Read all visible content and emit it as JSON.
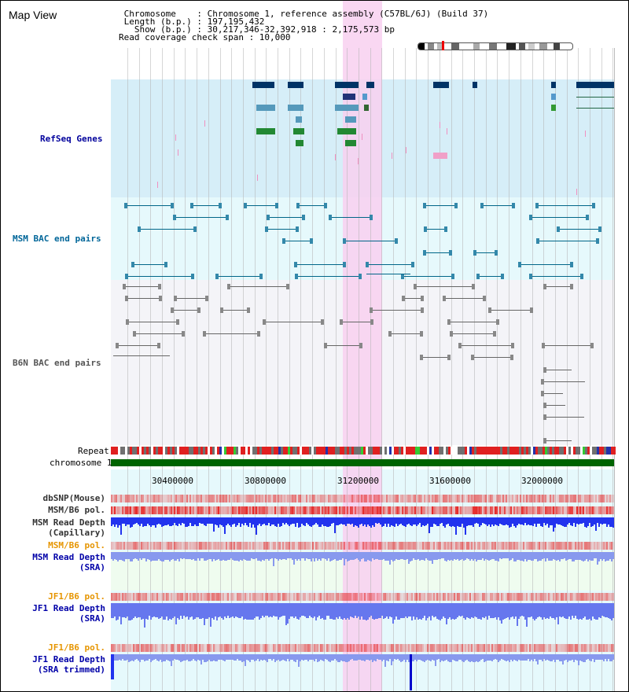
{
  "header": {
    "title": "Map View",
    "chromosome_line": " Chromosome    : Chromosome 1, reference assembly (C57BL/6J) (Build 37)",
    "length_line": " Length (b.p.) : 197,195,432",
    "show_line": "   Show (b.p.) : 30,217,346-32,392,918 : 2,175,573 bp",
    "coverage_line": "Read coverage check span : 10,000"
  },
  "tracks": {
    "refseq": "RefSeq Genes",
    "msm_bac": "MSM BAC end pairs",
    "b6n_bac": "B6N BAC end pairs",
    "repeat": "Repeat",
    "chromosome": "chromosome 1",
    "dbsnp": "dbSNP(Mouse)",
    "msm_pol_1": "MSM/B6 pol.",
    "msm_depth_cap": "MSM Read Depth",
    "msm_depth_cap_sub": "(Capillary)",
    "msm_pol_2": "MSM/B6 pol.",
    "msm_depth_sra": "MSM Read Depth",
    "msm_depth_sra_sub": "(SRA)",
    "jf1_pol_1": "JF1/B6 pol.",
    "jf1_depth_sra": "JF1 Read Depth",
    "jf1_depth_sra_sub": "(SRA)",
    "jf1_pol_2": "JF1/B6 pol.",
    "jf1_depth_trim": "JF1 Read Depth",
    "jf1_depth_trim_sub": "(SRA trimmed)"
  },
  "axis": {
    "ticks": [
      "30400000",
      "30800000",
      "31200000",
      "31600000",
      "32000000"
    ]
  },
  "colors": {
    "refseq_bg": "#d6eef8",
    "msm_bac_bg": "#e6f9fc",
    "b6n_bac_bg": "#f4f4f8",
    "highlight": "#f8d0f0",
    "refseq_label": "#00009c",
    "msm_label": "#006699",
    "b6n_label": "#555555",
    "pol_label_orange": "#e69500",
    "depth_label": "#0000a8",
    "chromosome_bar": "#006400",
    "msm_gene": "#003366",
    "gene_green": "#006600",
    "msm_bac_line": "#006688",
    "b6n_line": "#666666"
  }
}
